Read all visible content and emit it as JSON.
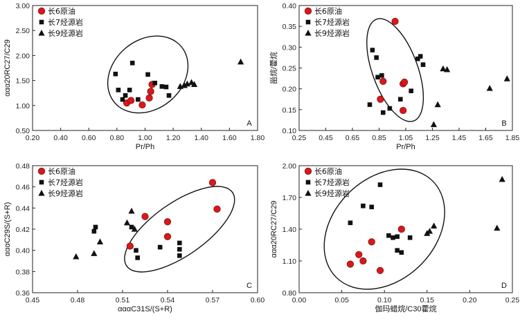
{
  "colors": {
    "oil": "#d7191c",
    "oil_stroke": "#6a0000",
    "ink": "#111111"
  },
  "chart_data": [
    {
      "id": "A",
      "panel_label": "A",
      "type": "scatter",
      "xlabel": "Pr/Ph",
      "ylabel": "ααα20RC27/C29",
      "xlim": [
        0.2,
        1.8
      ],
      "ylim": [
        0.5,
        3.0
      ],
      "xticks": [
        "0.20",
        "0.40",
        "0.60",
        "0.80",
        "1.00",
        "1.20",
        "1.40",
        "1.60",
        "1.80"
      ],
      "yticks": [
        "0.50",
        "1.00",
        "1.50",
        "2.00",
        "2.50",
        "3.00"
      ],
      "legend": [
        "长6原油",
        "长7烃源岩",
        "长9烃源岩"
      ],
      "series": [
        {
          "name": "长6原油",
          "marker": "circle",
          "points": [
            [
              0.87,
              1.05
            ],
            [
              0.9,
              1.1
            ],
            [
              0.98,
              1.01
            ],
            [
              1.03,
              1.15
            ],
            [
              1.04,
              1.28
            ],
            [
              1.05,
              1.42
            ]
          ]
        },
        {
          "name": "长7烃源岩",
          "marker": "square",
          "points": [
            [
              0.79,
              1.63
            ],
            [
              0.81,
              1.31
            ],
            [
              0.84,
              1.12
            ],
            [
              0.86,
              1.2
            ],
            [
              0.89,
              1.31
            ],
            [
              0.91,
              1.85
            ],
            [
              0.95,
              1.12
            ],
            [
              1.02,
              1.62
            ],
            [
              1.07,
              1.45
            ],
            [
              1.12,
              1.38
            ],
            [
              1.15,
              1.37
            ],
            [
              1.17,
              1.2
            ]
          ]
        },
        {
          "name": "长9烃源岩",
          "marker": "triangle",
          "points": [
            [
              1.25,
              1.38
            ],
            [
              1.28,
              1.4
            ],
            [
              1.3,
              1.43
            ],
            [
              1.33,
              1.46
            ],
            [
              1.35,
              1.42
            ],
            [
              1.68,
              1.87
            ]
          ]
        }
      ],
      "ellipse": {
        "cx": 1.02,
        "cy": 1.62,
        "rx": 0.31,
        "ry": 0.69,
        "angle": -40
      }
    },
    {
      "id": "B",
      "panel_label": "B",
      "type": "scatter",
      "xlabel": "Pr/Ph",
      "ylabel": "甾烷/藿烷",
      "xlim": [
        0.25,
        1.85
      ],
      "ylim": [
        0.1,
        0.4
      ],
      "xticks": [
        "0.25",
        "0.45",
        "0.65",
        "0.85",
        "1.05",
        "1.25",
        "1.45",
        "1.65",
        "1.85"
      ],
      "yticks": [
        "0.10",
        "0.15",
        "0.20",
        "0.25",
        "0.30",
        "0.35",
        "0.40"
      ],
      "legend": [
        "长6原油",
        "长7烃源岩",
        "长9烃源岩"
      ],
      "series": [
        {
          "name": "长6原油",
          "marker": "circle",
          "points": [
            [
              0.86,
              0.175
            ],
            [
              0.88,
              0.218
            ],
            [
              0.97,
              0.362
            ],
            [
              1.03,
              0.212
            ],
            [
              1.04,
              0.216
            ],
            [
              1.03,
              0.148
            ]
          ]
        },
        {
          "name": "长7烃源岩",
          "marker": "square",
          "points": [
            [
              0.78,
              0.162
            ],
            [
              0.8,
              0.293
            ],
            [
              0.83,
              0.275
            ],
            [
              0.84,
              0.228
            ],
            [
              0.87,
              0.232
            ],
            [
              0.88,
              0.143
            ],
            [
              0.93,
              0.153
            ],
            [
              1.01,
              0.175
            ],
            [
              1.09,
              0.195
            ],
            [
              1.14,
              0.272
            ],
            [
              1.16,
              0.278
            ],
            [
              1.18,
              0.258
            ]
          ]
        },
        {
          "name": "长9烃源岩",
          "marker": "triangle",
          "points": [
            [
              1.26,
              0.114
            ],
            [
              1.29,
              0.162
            ],
            [
              1.33,
              0.248
            ],
            [
              1.36,
              0.246
            ],
            [
              1.68,
              0.201
            ],
            [
              1.81,
              0.224
            ]
          ]
        }
      ],
      "ellipse": {
        "cx": 0.97,
        "cy": 0.245,
        "rx": 0.17,
        "ry": 0.13,
        "angle": -20
      }
    },
    {
      "id": "C",
      "panel_label": "C",
      "type": "scatter",
      "xlabel": "αααC31S/(S+R)",
      "ylabel": "αααC29S/(S+R)",
      "xlim": [
        0.45,
        0.6
      ],
      "ylim": [
        0.36,
        0.48
      ],
      "xticks": [
        "0.45",
        "0.48",
        "0.51",
        "0.54",
        "0.57",
        "0.60"
      ],
      "yticks": [
        "0.36",
        "0.38",
        "0.40",
        "0.42",
        "0.44",
        "0.46",
        "0.48"
      ],
      "legend": [
        "长6原油",
        "长7烃源岩",
        "长9烃源岩"
      ],
      "series": [
        {
          "name": "长6原油",
          "marker": "circle",
          "points": [
            [
              0.515,
              0.404
            ],
            [
              0.525,
              0.432
            ],
            [
              0.54,
              0.427
            ],
            [
              0.54,
              0.413
            ],
            [
              0.57,
              0.464
            ],
            [
              0.573,
              0.439
            ]
          ]
        },
        {
          "name": "长7烃源岩",
          "marker": "square",
          "points": [
            [
              0.491,
              0.418
            ],
            [
              0.492,
              0.422
            ],
            [
              0.516,
              0.422
            ],
            [
              0.519,
              0.4
            ],
            [
              0.52,
              0.393
            ],
            [
              0.535,
              0.403
            ],
            [
              0.548,
              0.407
            ],
            [
              0.548,
              0.401
            ],
            [
              0.548,
              0.395
            ]
          ]
        },
        {
          "name": "长9烃源岩",
          "marker": "triangle",
          "points": [
            [
              0.479,
              0.394
            ],
            [
              0.491,
              0.397
            ],
            [
              0.495,
              0.408
            ],
            [
              0.513,
              0.426
            ],
            [
              0.516,
              0.437
            ],
            [
              0.518,
              0.42
            ]
          ]
        }
      ],
      "ellipse": {
        "cx": 0.548,
        "cy": 0.42,
        "rx": 0.043,
        "ry": 0.025,
        "angle": -35
      }
    },
    {
      "id": "D",
      "panel_label": "D",
      "type": "scatter",
      "xlabel": "伽玛蜡烷/C30藿烷",
      "ylabel": "ααα20RC27/C29",
      "xlim": [
        0.0,
        0.25
      ],
      "ylim": [
        0.8,
        2.0
      ],
      "xticks": [
        "0.00",
        "0.05",
        "0.10",
        "0.15",
        "0.20",
        "0.25"
      ],
      "yticks": [
        "0.80",
        "1.10",
        "1.40",
        "1.70",
        "2.00"
      ],
      "legend": [
        "长6原油",
        "长7烃源岩",
        "长9烃源岩"
      ],
      "series": [
        {
          "name": "长6原油",
          "marker": "circle",
          "points": [
            [
              0.06,
              1.07
            ],
            [
              0.07,
              1.16
            ],
            [
              0.075,
              1.1
            ],
            [
              0.085,
              1.28
            ],
            [
              0.095,
              1.01
            ],
            [
              0.12,
              1.4
            ]
          ]
        },
        {
          "name": "长7烃源岩",
          "marker": "square",
          "points": [
            [
              0.06,
              1.46
            ],
            [
              0.075,
              1.62
            ],
            [
              0.085,
              1.61
            ],
            [
              0.095,
              1.82
            ],
            [
              0.105,
              1.34
            ],
            [
              0.11,
              1.32
            ],
            [
              0.115,
              1.33
            ],
            [
              0.115,
              1.2
            ],
            [
              0.12,
              1.18
            ],
            [
              0.13,
              1.32
            ]
          ]
        },
        {
          "name": "长9烃源岩",
          "marker": "triangle",
          "points": [
            [
              0.15,
              1.36
            ],
            [
              0.153,
              1.38
            ],
            [
              0.158,
              1.43
            ],
            [
              0.232,
              1.41
            ],
            [
              0.238,
              1.87
            ]
          ]
        }
      ],
      "ellipse": {
        "cx": 0.1,
        "cy": 1.4,
        "rx": 0.08,
        "ry": 0.48,
        "angle": -45
      }
    }
  ]
}
